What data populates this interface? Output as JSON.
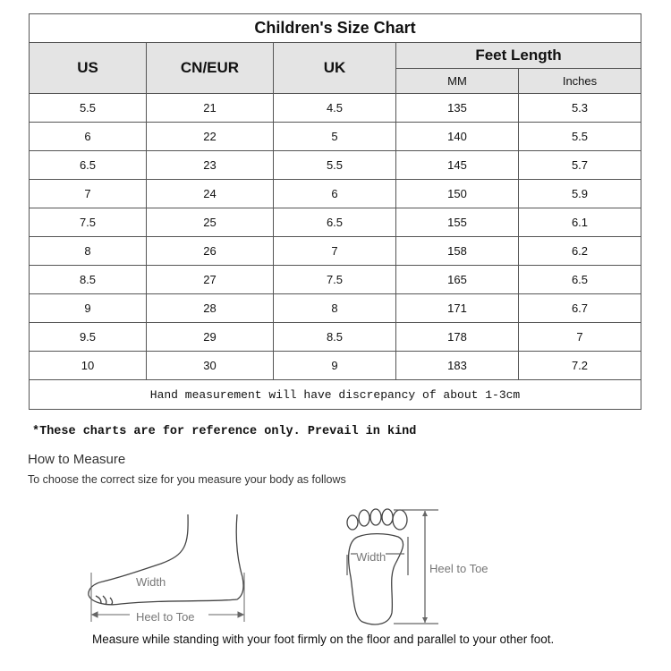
{
  "table": {
    "title": "Children's Size Chart",
    "headers": {
      "us": "US",
      "cn_eur": "CN/EUR",
      "uk": "UK",
      "feet_length": "Feet Length",
      "mm": "MM",
      "inches": "Inches"
    },
    "rows": [
      [
        "5.5",
        "21",
        "4.5",
        "135",
        "5.3"
      ],
      [
        "6",
        "22",
        "5",
        "140",
        "5.5"
      ],
      [
        "6.5",
        "23",
        "5.5",
        "145",
        "5.7"
      ],
      [
        "7",
        "24",
        "6",
        "150",
        "5.9"
      ],
      [
        "7.5",
        "25",
        "6.5",
        "155",
        "6.1"
      ],
      [
        "8",
        "26",
        "7",
        "158",
        "6.2"
      ],
      [
        "8.5",
        "27",
        "7.5",
        "165",
        "6.5"
      ],
      [
        "9",
        "28",
        "8",
        "171",
        "6.7"
      ],
      [
        "9.5",
        "29",
        "8.5",
        "178",
        "7"
      ],
      [
        "10",
        "30",
        "9",
        "183",
        "7.2"
      ]
    ],
    "footer": "Hand measurement will have discrepancy of about 1-3cm"
  },
  "note": "*These charts are for reference only. Prevail in kind",
  "how_to": {
    "title": "How to Measure",
    "subtitle": "To choose the correct size for you measure your body as follows",
    "side_width_label": "Width",
    "side_length_label": "Heel to Toe",
    "top_width_label": "Width",
    "top_length_label": "Heel to Toe",
    "instruction": "Measure while standing with your foot firmly on the floor and parallel to your other foot."
  }
}
